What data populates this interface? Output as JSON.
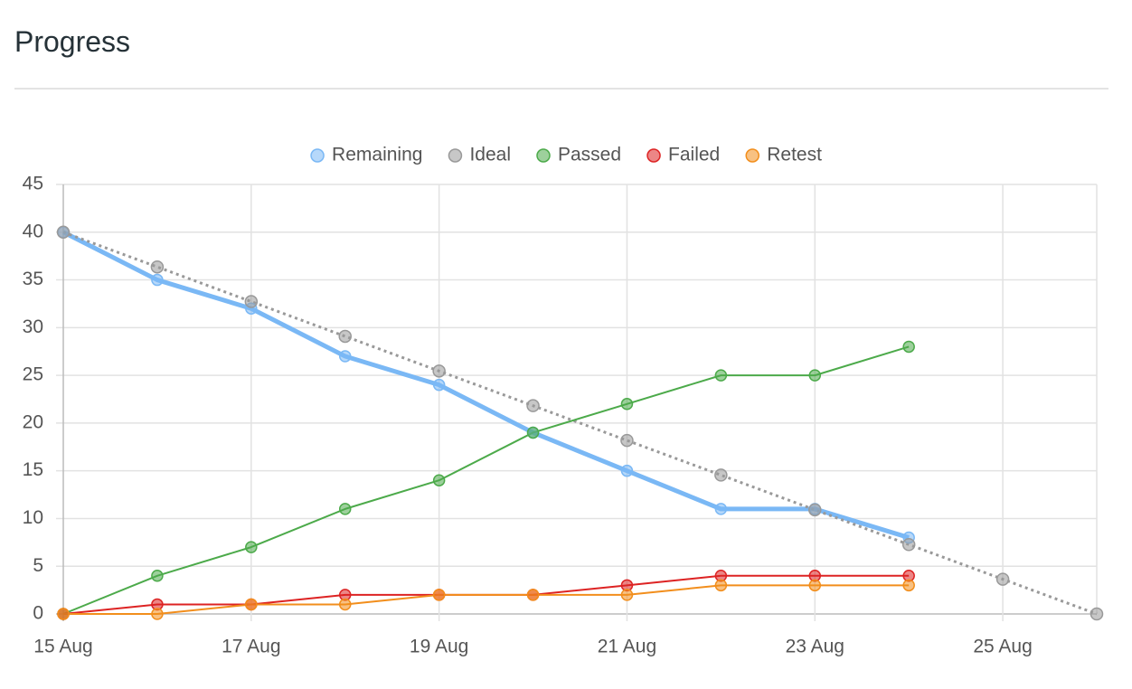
{
  "chart_data": {
    "type": "line",
    "title": "Progress",
    "categories": [
      "15 Aug",
      null,
      "17 Aug",
      null,
      "19 Aug",
      null,
      "21 Aug",
      null,
      "23 Aug",
      null,
      "25 Aug",
      null
    ],
    "series": [
      {
        "name": "Remaining",
        "color": "#7ab8f5",
        "values": [
          40,
          35,
          32,
          27,
          24,
          19,
          15,
          11,
          11,
          8,
          null,
          null
        ]
      },
      {
        "name": "Ideal",
        "color": "#999999",
        "values": [
          40,
          36.36,
          32.73,
          29.09,
          25.45,
          21.82,
          18.18,
          14.55,
          10.91,
          7.27,
          3.64,
          0
        ]
      },
      {
        "name": "Passed",
        "color": "#4caa4a",
        "values": [
          0,
          4,
          7,
          11,
          14,
          19,
          22,
          25,
          25,
          28,
          null,
          null
        ]
      },
      {
        "name": "Failed",
        "color": "#dd2323",
        "values": [
          0,
          1,
          1,
          2,
          2,
          2,
          3,
          4,
          4,
          4,
          null,
          null
        ]
      },
      {
        "name": "Retest",
        "color": "#f28e1c",
        "values": [
          0,
          0,
          1,
          1,
          2,
          2,
          2,
          3,
          3,
          3,
          null,
          null
        ]
      }
    ],
    "ylim": [
      0,
      45
    ],
    "yticks": [
      0,
      5,
      10,
      15,
      20,
      25,
      30,
      35,
      40,
      45
    ],
    "grid": true,
    "legend": "top"
  }
}
